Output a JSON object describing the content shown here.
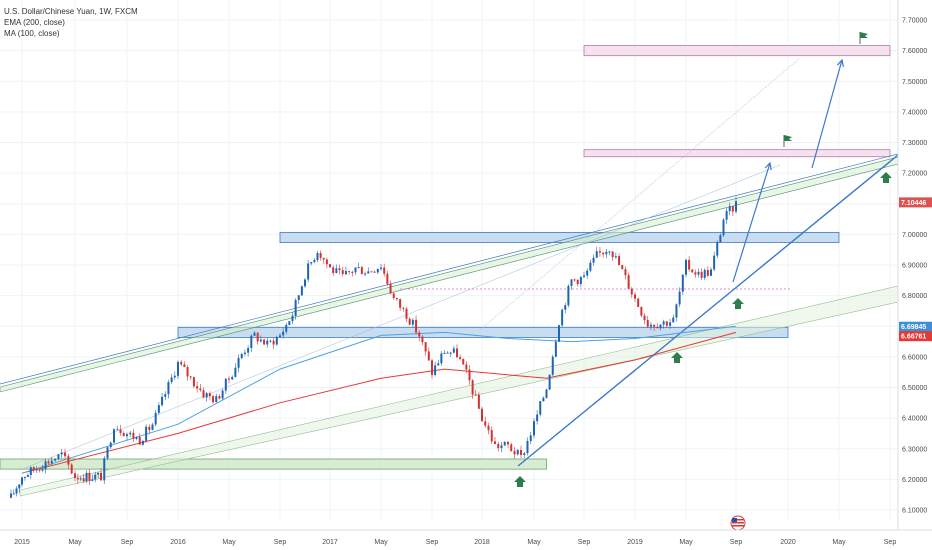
{
  "header": {
    "symbol_line": "U.S. Dollar/Chinese Yuan, 1W, FXCM",
    "indicator_1": "EMA (200, close)",
    "indicator_2": "MA (100, close)"
  },
  "colors": {
    "bull": "#1e64b4",
    "bear": "#d23232",
    "ema": "#e53935",
    "ma": "#4fa3e0",
    "trend": "#3c78c8",
    "zone_blue_fill": "#c9ddf1",
    "zone_green_fill": "#d7ecd2",
    "zone_pink_fill": "#f6e2ef",
    "marker_green": "#2e7d4f",
    "grid": "#f0f3f6"
  },
  "chart_data": {
    "type": "candlestick",
    "title": "U.S. Dollar/Chinese Yuan, 1W, FXCM",
    "x_axis": {
      "tick_labels": [
        "2015",
        "May",
        "Sep",
        "2016",
        "May",
        "Sep",
        "2017",
        "May",
        "Sep",
        "2018",
        "May",
        "Sep",
        "2019",
        "May",
        "Sep",
        "2020",
        "May",
        "Sep"
      ],
      "tick_dates": [
        "2015-01",
        "2015-05",
        "2015-09",
        "2016-01",
        "2016-05",
        "2016-09",
        "2017-01",
        "2017-05",
        "2017-09",
        "2018-01",
        "2018-05",
        "2018-09",
        "2019-01",
        "2019-05",
        "2019-09",
        "2020-01",
        "2020-05",
        "2020-09"
      ],
      "range": [
        "2014-09",
        "2020-10"
      ]
    },
    "y_axis": {
      "ticks": [
        "6.10000",
        "6.20000",
        "6.30000",
        "6.40000",
        "6.50000",
        "6.60000",
        "6.70000",
        "6.80000",
        "6.90000",
        "7.00000",
        "7.10000",
        "7.20000",
        "7.30000",
        "7.40000",
        "7.50000",
        "7.60000",
        "7.70000"
      ],
      "range": [
        6.05,
        7.72
      ],
      "position": "right"
    },
    "price_series": [
      {
        "date": "2014-11",
        "close": 6.14
      },
      {
        "date": "2015-01",
        "close": 6.21
      },
      {
        "date": "2015-03",
        "close": 6.26
      },
      {
        "date": "2015-04",
        "close": 6.28
      },
      {
        "date": "2015-05",
        "close": 6.21
      },
      {
        "date": "2015-07",
        "close": 6.21
      },
      {
        "date": "2015-08",
        "close": 6.38
      },
      {
        "date": "2015-09",
        "close": 6.35
      },
      {
        "date": "2015-10",
        "close": 6.33
      },
      {
        "date": "2015-11",
        "close": 6.38
      },
      {
        "date": "2015-12",
        "close": 6.48
      },
      {
        "date": "2016-01",
        "close": 6.58
      },
      {
        "date": "2016-02",
        "close": 6.53
      },
      {
        "date": "2016-03",
        "close": 6.48
      },
      {
        "date": "2016-04",
        "close": 6.46
      },
      {
        "date": "2016-05",
        "close": 6.53
      },
      {
        "date": "2016-06",
        "close": 6.61
      },
      {
        "date": "2016-07",
        "close": 6.67
      },
      {
        "date": "2016-08",
        "close": 6.64
      },
      {
        "date": "2016-09",
        "close": 6.67
      },
      {
        "date": "2016-10",
        "close": 6.74
      },
      {
        "date": "2016-11",
        "close": 6.87
      },
      {
        "date": "2016-12",
        "close": 6.95
      },
      {
        "date": "2017-01",
        "close": 6.89
      },
      {
        "date": "2017-02",
        "close": 6.86
      },
      {
        "date": "2017-03",
        "close": 6.89
      },
      {
        "date": "2017-04",
        "close": 6.88
      },
      {
        "date": "2017-05",
        "close": 6.9
      },
      {
        "date": "2017-06",
        "close": 6.79
      },
      {
        "date": "2017-07",
        "close": 6.74
      },
      {
        "date": "2017-08",
        "close": 6.67
      },
      {
        "date": "2017-09",
        "close": 6.55
      },
      {
        "date": "2017-10",
        "close": 6.62
      },
      {
        "date": "2017-11",
        "close": 6.61
      },
      {
        "date": "2017-12",
        "close": 6.52
      },
      {
        "date": "2018-01",
        "close": 6.4
      },
      {
        "date": "2018-02",
        "close": 6.31
      },
      {
        "date": "2018-03",
        "close": 6.31
      },
      {
        "date": "2018-04",
        "close": 6.27
      },
      {
        "date": "2018-05",
        "close": 6.38
      },
      {
        "date": "2018-06",
        "close": 6.5
      },
      {
        "date": "2018-07",
        "close": 6.72
      },
      {
        "date": "2018-08",
        "close": 6.85
      },
      {
        "date": "2018-09",
        "close": 6.86
      },
      {
        "date": "2018-10",
        "close": 6.93
      },
      {
        "date": "2018-11",
        "close": 6.96
      },
      {
        "date": "2018-12",
        "close": 6.88
      },
      {
        "date": "2019-01",
        "close": 6.79
      },
      {
        "date": "2019-02",
        "close": 6.71
      },
      {
        "date": "2019-03",
        "close": 6.71
      },
      {
        "date": "2019-04",
        "close": 6.72
      },
      {
        "date": "2019-05",
        "close": 6.9
      },
      {
        "date": "2019-06",
        "close": 6.87
      },
      {
        "date": "2019-07",
        "close": 6.88
      },
      {
        "date": "2019-08",
        "close": 7.05
      },
      {
        "date": "2019-09",
        "close": 7.1
      }
    ],
    "indicators": [
      {
        "name": "EMA (200, close)",
        "points": [
          {
            "date": "2015-01",
            "value": 6.22
          },
          {
            "date": "2016-01",
            "value": 6.35
          },
          {
            "date": "2016-09",
            "value": 6.45
          },
          {
            "date": "2017-05",
            "value": 6.53
          },
          {
            "date": "2017-10",
            "value": 6.56
          },
          {
            "date": "2018-06",
            "value": 6.53
          },
          {
            "date": "2019-01",
            "value": 6.59
          },
          {
            "date": "2019-09",
            "value": 6.68
          }
        ]
      },
      {
        "name": "MA (100, close)",
        "points": [
          {
            "date": "2015-01",
            "value": 6.22
          },
          {
            "date": "2016-01",
            "value": 6.38
          },
          {
            "date": "2016-09",
            "value": 6.56
          },
          {
            "date": "2017-05",
            "value": 6.67
          },
          {
            "date": "2017-10",
            "value": 6.68
          },
          {
            "date": "2018-03",
            "value": 6.66
          },
          {
            "date": "2018-08",
            "value": 6.65
          },
          {
            "date": "2019-01",
            "value": 6.66
          },
          {
            "date": "2019-09",
            "value": 6.7
          }
        ]
      }
    ],
    "price_labels": [
      {
        "text": "7.10446",
        "color": "#e05050",
        "price": 7.10446
      },
      {
        "text": "6.69845",
        "color": "#3d8edb",
        "price": 6.69845
      },
      {
        "text": "6.66761",
        "color": "#e53935",
        "price": 6.66761
      }
    ],
    "zones": [
      {
        "kind": "resistance",
        "price_low": 6.98,
        "price_high": 7.0,
        "from": "2016-09",
        "to": "2020-05"
      },
      {
        "kind": "support",
        "price_low": 6.67,
        "price_high": 6.69,
        "from": "2016-01",
        "to": "2020-01"
      },
      {
        "kind": "base",
        "price_low": 6.24,
        "price_high": 6.26,
        "from": "2014-09",
        "to": "2018-06"
      },
      {
        "kind": "target",
        "price_low": 7.26,
        "price_high": 7.27,
        "from": "2018-09",
        "to": "2020-09"
      },
      {
        "kind": "target",
        "price_low": 7.59,
        "price_high": 7.61,
        "from": "2018-09",
        "to": "2020-09"
      }
    ],
    "grid": true,
    "legend_placement": "top-left"
  }
}
